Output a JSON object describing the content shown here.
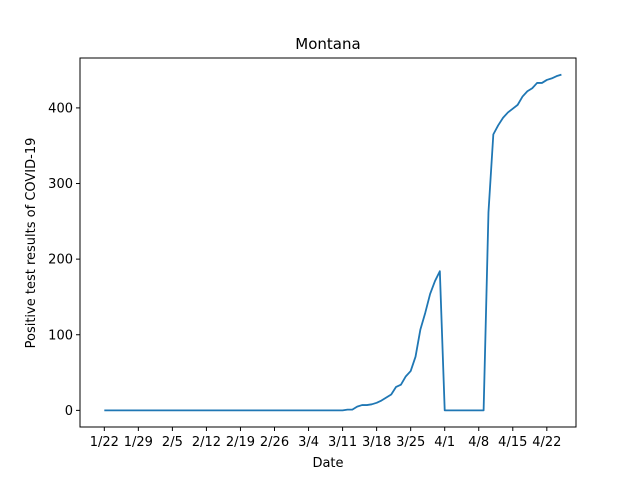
{
  "chart_data": {
    "type": "line",
    "title": "Montana",
    "xlabel": "Date",
    "ylabel": "Positive test results of COVID-19",
    "x_tick_labels": [
      "1/22",
      "1/29",
      "2/5",
      "2/12",
      "2/19",
      "2/26",
      "3/4",
      "3/11",
      "3/18",
      "3/25",
      "4/1",
      "4/8",
      "4/15",
      "4/22"
    ],
    "y_ticks": [
      0,
      100,
      200,
      300,
      400
    ],
    "ylim": [
      -22,
      466
    ],
    "xlim": [
      "1/17",
      "4/28"
    ],
    "grid": false,
    "legend": "none",
    "color": "#1f77b4",
    "series": [
      {
        "x": [
          "1/22",
          "1/23",
          "1/24",
          "1/25",
          "1/26",
          "1/27",
          "1/28",
          "1/29",
          "1/30",
          "1/31",
          "2/1",
          "2/2",
          "2/3",
          "2/4",
          "2/5",
          "2/6",
          "2/7",
          "2/8",
          "2/9",
          "2/10",
          "2/11",
          "2/12",
          "2/13",
          "2/14",
          "2/15",
          "2/16",
          "2/17",
          "2/18",
          "2/19",
          "2/20",
          "2/21",
          "2/22",
          "2/23",
          "2/24",
          "2/25",
          "2/26",
          "2/27",
          "2/28",
          "2/29",
          "3/1",
          "3/2",
          "3/3",
          "3/4",
          "3/5",
          "3/6",
          "3/7",
          "3/8",
          "3/9",
          "3/10",
          "3/11",
          "3/12",
          "3/13",
          "3/14",
          "3/15",
          "3/16",
          "3/17",
          "3/18",
          "3/19",
          "3/20",
          "3/21",
          "3/22",
          "3/23",
          "3/24",
          "3/25",
          "3/26",
          "3/27",
          "3/28",
          "3/29",
          "3/30",
          "3/31",
          "4/1",
          "4/2",
          "4/3",
          "4/4",
          "4/5",
          "4/6",
          "4/7",
          "4/8",
          "4/9",
          "4/10",
          "4/11",
          "4/12",
          "4/13",
          "4/14",
          "4/15",
          "4/16",
          "4/17",
          "4/18",
          "4/19",
          "4/20",
          "4/21",
          "4/22",
          "4/23",
          "4/24",
          "4/25"
        ],
        "y": [
          0,
          0,
          0,
          0,
          0,
          0,
          0,
          0,
          0,
          0,
          0,
          0,
          0,
          0,
          0,
          0,
          0,
          0,
          0,
          0,
          0,
          0,
          0,
          0,
          0,
          0,
          0,
          0,
          0,
          0,
          0,
          0,
          0,
          0,
          0,
          0,
          0,
          0,
          0,
          0,
          0,
          0,
          0,
          0,
          0,
          0,
          0,
          0,
          0,
          0,
          1,
          1,
          5,
          7,
          7,
          8,
          10,
          13,
          17,
          21,
          31,
          34,
          45,
          52,
          71,
          107,
          129,
          154,
          171,
          184,
          0,
          0,
          0,
          0,
          0,
          0,
          0,
          0,
          0,
          262,
          365,
          377,
          387,
          394,
          399,
          404,
          415,
          422,
          426,
          433,
          433,
          437,
          439,
          442,
          444
        ]
      }
    ]
  }
}
